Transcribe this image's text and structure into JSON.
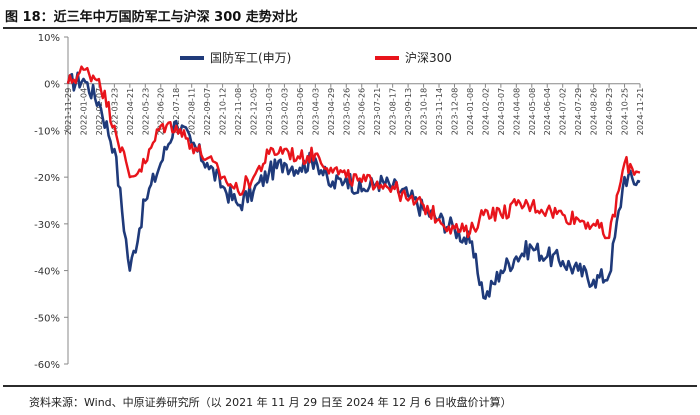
{
  "figure": {
    "title": "图 18：近三年中万国防军工与沪深 300 走势对比",
    "source": "资料来源：Wind、中原证券研究所（以 2021 年 11 月 29 日至 2024 年 12 月 6 日收盘价计算）"
  },
  "chart_data": {
    "type": "line",
    "title": "",
    "xlabel": "",
    "ylabel": "",
    "ylim": [
      -60,
      10
    ],
    "yticks": [
      10,
      0,
      -10,
      -20,
      -30,
      -40,
      -50,
      -60
    ],
    "ytick_labels": [
      "10%",
      "0%",
      "-10%",
      "-20%",
      "-30%",
      "-40%",
      "-50%",
      "-60%"
    ],
    "grid": false,
    "legend_position": "top",
    "x": [
      "2021-11-29",
      "2022-01-04",
      "2022-02-07",
      "2022-03-23",
      "2022-04-21",
      "2022-05-23",
      "2022-06-20",
      "2022-07-18",
      "2022-08-11",
      "2022-09-07",
      "2022-10-12",
      "2022-11-08",
      "2022-12-05",
      "2023-01-03",
      "2023-02-03",
      "2023-03-06",
      "2023-04-03",
      "2023-04-29",
      "2023-05-26",
      "2023-06-26",
      "2023-07-21",
      "2023-08-17",
      "2023-09-13",
      "2023-10-18",
      "2023-11-14",
      "2023-12-08",
      "2024-01-08",
      "2024-02-02",
      "2024-03-07",
      "2024-04-08",
      "2024-05-08",
      "2024-06-04",
      "2024-07-02",
      "2024-07-29",
      "2024-08-26",
      "2024-09-23",
      "2024-10-25",
      "2024-11-21"
    ],
    "series": [
      {
        "name": "国防军工(申万)",
        "color": "#1f3a7a",
        "values": [
          0,
          1,
          -4,
          -14,
          -40,
          -25,
          -17,
          -8,
          -13,
          -17,
          -22,
          -26,
          -23,
          -19,
          -17,
          -18,
          -16,
          -22,
          -20,
          -23,
          -21,
          -22,
          -24,
          -27,
          -29,
          -31,
          -34,
          -46,
          -40,
          -37,
          -35,
          -37,
          -38,
          -40,
          -42,
          -41,
          -20,
          -21
        ]
      },
      {
        "name": "沪深300",
        "color": "#e8141b",
        "values": [
          0,
          3,
          1,
          -9,
          -20,
          -17,
          -9,
          -9,
          -13,
          -16,
          -20,
          -23,
          -20,
          -15,
          -14,
          -16,
          -15,
          -18,
          -20,
          -21,
          -21,
          -22,
          -25,
          -26,
          -29,
          -31,
          -32,
          -27,
          -28,
          -26,
          -26,
          -27,
          -28,
          -29,
          -30,
          -33,
          -17,
          -19
        ]
      }
    ]
  }
}
